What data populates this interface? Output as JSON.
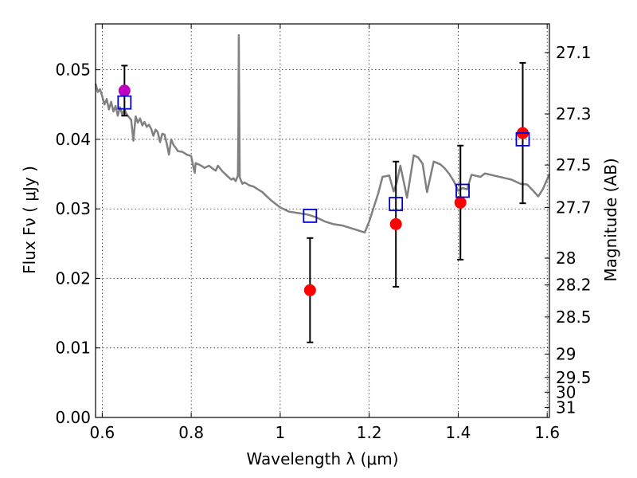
{
  "chart_data": {
    "type": "scatter",
    "xlabel": "Wavelength  λ (μm)",
    "ylabel": "Flux  Fν  ( μJy )",
    "y2label": "Magnitude (AB)",
    "xlim": [
      0.585,
      1.605
    ],
    "ylim": [
      0.0,
      0.0566
    ],
    "grid": true,
    "grid_style": "dotted",
    "x_ticks": [
      {
        "value": 0.6,
        "label": "0.6"
      },
      {
        "value": 0.8,
        "label": "0.8"
      },
      {
        "value": 1.0,
        "label": "1"
      },
      {
        "value": 1.2,
        "label": "1.2"
      },
      {
        "value": 1.4,
        "label": "1.4"
      },
      {
        "value": 1.6,
        "label": "1.6"
      }
    ],
    "y_ticks": [
      {
        "value": 0.0,
        "label": "0.00"
      },
      {
        "value": 0.01,
        "label": "0.01"
      },
      {
        "value": 0.02,
        "label": "0.02"
      },
      {
        "value": 0.03,
        "label": "0.03"
      },
      {
        "value": 0.04,
        "label": "0.04"
      },
      {
        "value": 0.05,
        "label": "0.05"
      }
    ],
    "y2_ticks": [
      {
        "value": 27.1,
        "label": "27.1"
      },
      {
        "value": 27.3,
        "label": "27.3"
      },
      {
        "value": 27.5,
        "label": "27.5"
      },
      {
        "value": 27.7,
        "label": "27.7"
      },
      {
        "value": 28.0,
        "label": "28"
      },
      {
        "value": 28.2,
        "label": "28.2"
      },
      {
        "value": 28.5,
        "label": "28.5"
      },
      {
        "value": 29.0,
        "label": "29"
      },
      {
        "value": 29.5,
        "label": "29.5"
      },
      {
        "value": 30.0,
        "label": "30"
      },
      {
        "value": 31.0,
        "label": "31"
      }
    ],
    "colors": {
      "model": "#808080",
      "observed": "#ff0000",
      "observed_special": "#bf00bf",
      "model_photometry": "#0000cc",
      "errorbar": "#000000"
    },
    "series": [
      {
        "kind": "line",
        "points": [
          [
            0.585,
            0.048
          ],
          [
            0.59,
            0.0468
          ],
          [
            0.595,
            0.0472
          ],
          [
            0.6,
            0.0462
          ],
          [
            0.605,
            0.045
          ],
          [
            0.61,
            0.0458
          ],
          [
            0.615,
            0.0443
          ],
          [
            0.62,
            0.0454
          ],
          [
            0.625,
            0.044
          ],
          [
            0.63,
            0.0448
          ],
          [
            0.635,
            0.0434
          ],
          [
            0.64,
            0.0446
          ],
          [
            0.645,
            0.0436
          ],
          [
            0.65,
            0.0443
          ],
          [
            0.655,
            0.0436
          ],
          [
            0.66,
            0.0432
          ],
          [
            0.665,
            0.0428
          ],
          [
            0.67,
            0.0398
          ],
          [
            0.675,
            0.0433
          ],
          [
            0.68,
            0.0424
          ],
          [
            0.685,
            0.043
          ],
          [
            0.69,
            0.042
          ],
          [
            0.695,
            0.0425
          ],
          [
            0.7,
            0.0418
          ],
          [
            0.705,
            0.0421
          ],
          [
            0.71,
            0.0415
          ],
          [
            0.715,
            0.0405
          ],
          [
            0.72,
            0.0414
          ],
          [
            0.725,
            0.041
          ],
          [
            0.73,
            0.0396
          ],
          [
            0.735,
            0.0408
          ],
          [
            0.74,
            0.0407
          ],
          [
            0.745,
            0.0394
          ],
          [
            0.75,
            0.0378
          ],
          [
            0.755,
            0.04
          ],
          [
            0.76,
            0.0392
          ],
          [
            0.765,
            0.0388
          ],
          [
            0.77,
            0.0383
          ],
          [
            0.78,
            0.0382
          ],
          [
            0.79,
            0.0378
          ],
          [
            0.8,
            0.0376
          ],
          [
            0.805,
            0.036
          ],
          [
            0.808,
            0.0352
          ],
          [
            0.81,
            0.0366
          ],
          [
            0.82,
            0.0363
          ],
          [
            0.83,
            0.0359
          ],
          [
            0.84,
            0.0362
          ],
          [
            0.85,
            0.0357
          ],
          [
            0.855,
            0.0355
          ],
          [
            0.86,
            0.0362
          ],
          [
            0.87,
            0.0354
          ],
          [
            0.88,
            0.0348
          ],
          [
            0.89,
            0.0342
          ],
          [
            0.895,
            0.0344
          ],
          [
            0.9,
            0.034
          ],
          [
            0.905,
            0.0348
          ],
          [
            0.906,
            0.042
          ],
          [
            0.907,
            0.055
          ],
          [
            0.908,
            0.044
          ],
          [
            0.909,
            0.0345
          ],
          [
            0.915,
            0.0336
          ],
          [
            0.92,
            0.0338
          ],
          [
            0.93,
            0.0334
          ],
          [
            0.94,
            0.0332
          ],
          [
            0.95,
            0.0328
          ],
          [
            0.96,
            0.0324
          ],
          [
            0.97,
            0.0318
          ],
          [
            0.98,
            0.0312
          ],
          [
            0.99,
            0.0307
          ],
          [
            1.0,
            0.0302
          ],
          [
            1.02,
            0.0296
          ],
          [
            1.04,
            0.0294
          ],
          [
            1.06,
            0.0292
          ],
          [
            1.08,
            0.0288
          ],
          [
            1.1,
            0.0282
          ],
          [
            1.12,
            0.0278
          ],
          [
            1.14,
            0.0276
          ],
          [
            1.16,
            0.0272
          ],
          [
            1.18,
            0.0268
          ],
          [
            1.19,
            0.0266
          ],
          [
            1.2,
            0.0282
          ],
          [
            1.22,
            0.0322
          ],
          [
            1.23,
            0.0346
          ],
          [
            1.245,
            0.0348
          ],
          [
            1.255,
            0.0325
          ],
          [
            1.262,
            0.0338
          ],
          [
            1.27,
            0.0362
          ],
          [
            1.285,
            0.0316
          ],
          [
            1.3,
            0.0377
          ],
          [
            1.31,
            0.0374
          ],
          [
            1.32,
            0.0365
          ],
          [
            1.33,
            0.0324
          ],
          [
            1.345,
            0.0368
          ],
          [
            1.36,
            0.0364
          ],
          [
            1.37,
            0.0358
          ],
          [
            1.38,
            0.035
          ],
          [
            1.39,
            0.034
          ],
          [
            1.4,
            0.0326
          ],
          [
            1.41,
            0.033
          ],
          [
            1.42,
            0.0328
          ],
          [
            1.43,
            0.0349
          ],
          [
            1.45,
            0.0346
          ],
          [
            1.46,
            0.0351
          ],
          [
            1.48,
            0.0348
          ],
          [
            1.5,
            0.0345
          ],
          [
            1.52,
            0.0342
          ],
          [
            1.54,
            0.0336
          ],
          [
            1.555,
            0.0335
          ],
          [
            1.57,
            0.0325
          ],
          [
            1.58,
            0.0318
          ],
          [
            1.59,
            0.0328
          ],
          [
            1.605,
            0.035
          ]
        ]
      },
      {
        "kind": "points_with_errorbars",
        "points": [
          {
            "x": 0.65,
            "y": 0.047,
            "yerr": 0.0036
          },
          {
            "x": 1.067,
            "y": 0.0183,
            "yerr": 0.0075
          },
          {
            "x": 1.26,
            "y": 0.0278,
            "yerr": 0.009
          },
          {
            "x": 1.405,
            "y": 0.0309,
            "yerr": 0.0082
          },
          {
            "x": 1.545,
            "y": 0.0409,
            "yerr": 0.0101
          }
        ]
      },
      {
        "kind": "squares",
        "points": [
          {
            "x": 0.65,
            "y": 0.0453
          },
          {
            "x": 1.067,
            "y": 0.029
          },
          {
            "x": 1.26,
            "y": 0.0307
          },
          {
            "x": 1.41,
            "y": 0.0326
          },
          {
            "x": 1.545,
            "y": 0.04
          }
        ]
      }
    ]
  }
}
